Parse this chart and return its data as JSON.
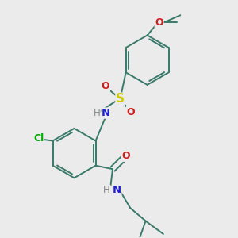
{
  "bg_color": "#ebebeb",
  "bond_color": "#3a7a6a",
  "ring_bond_color": "#3a7a6a",
  "atom_colors": {
    "N": "#2020cc",
    "O": "#cc2020",
    "S": "#cccc00",
    "Cl": "#00aa00",
    "H": "#888888",
    "C": "#3a7a6a"
  }
}
